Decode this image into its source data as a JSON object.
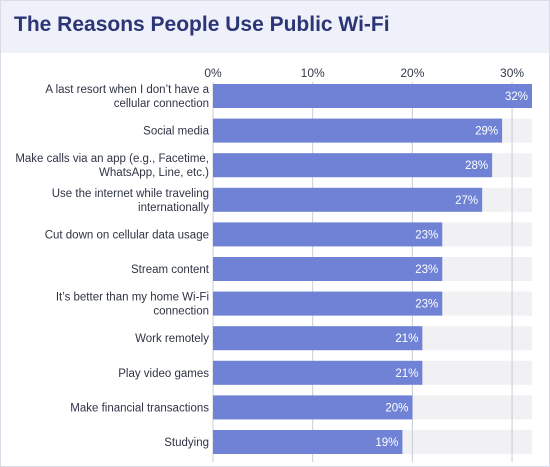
{
  "chart_data": {
    "type": "bar",
    "orientation": "horizontal",
    "title": "The Reasons People Use Public Wi-Fi",
    "categories": [
      [
        "A last resort when I don’t have a",
        "cellular connection"
      ],
      [
        "Social media"
      ],
      [
        "Make calls via an app (e.g., Facetime,",
        "WhatsApp, Line, etc.)"
      ],
      [
        "Use the internet while traveling",
        "internationally"
      ],
      [
        "Cut down on cellular data usage"
      ],
      [
        "Stream content"
      ],
      [
        "It’s better than my home Wi-Fi",
        "connection"
      ],
      [
        "Work remotely"
      ],
      [
        "Play video games"
      ],
      [
        "Make financial transactions"
      ],
      [
        "Studying"
      ]
    ],
    "values": [
      32,
      29,
      28,
      27,
      23,
      23,
      23,
      21,
      21,
      20,
      19
    ],
    "data_labels": [
      "32%",
      "29%",
      "28%",
      "27%",
      "23%",
      "23%",
      "23%",
      "21%",
      "21%",
      "20%",
      "19%"
    ],
    "xticks": [
      0,
      10,
      20,
      30
    ],
    "xtick_labels": [
      "0%",
      "10%",
      "20%",
      "30%"
    ],
    "xlim": [
      0,
      32
    ],
    "grid": true,
    "axis_position": "top",
    "colors": {
      "bar": "#6f82d6",
      "track": "#f1f1f3",
      "grid": "#c9ccd6",
      "title": "#2c3575",
      "header_bg": "#eef0fa"
    }
  }
}
